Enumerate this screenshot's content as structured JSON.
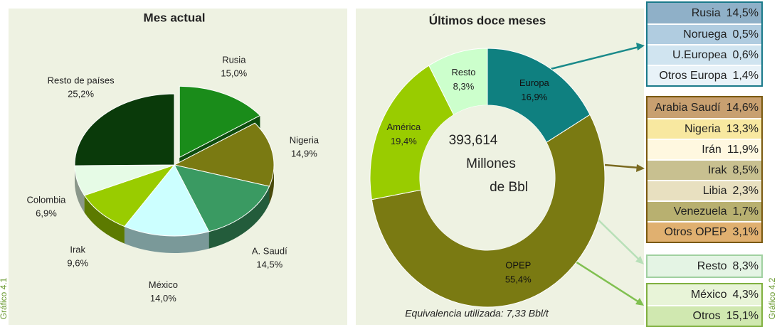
{
  "side_labels": [
    "Gráfico 4.1",
    "Gráfico 4.2"
  ],
  "chart_data": [
    {
      "type": "pie",
      "title": "Mes actual",
      "categories": [
        "Rusia",
        "Nigeria",
        "A. Saudí",
        "México",
        "Irak",
        "Colombia",
        "Resto de países"
      ],
      "values": [
        15.0,
        14.9,
        14.5,
        14.0,
        9.6,
        6.9,
        25.2
      ],
      "value_labels": [
        "15,0%",
        "14,9%",
        "14,5%",
        "14,0%",
        "9,6%",
        "6,9%",
        "25,2%"
      ],
      "colors": [
        "#1a8c1a",
        "#7a7a12",
        "#3a9a62",
        "#ccffff",
        "#99cc00",
        "#e6fbe6",
        "#0a3a0a"
      ],
      "exploded": 0
    },
    {
      "type": "donut",
      "title": "Últimos doce meses",
      "categories": [
        "Europa",
        "OPEP",
        "América",
        "Resto"
      ],
      "values": [
        16.9,
        55.4,
        19.4,
        8.3
      ],
      "value_labels": [
        "16,9%",
        "55,4%",
        "19,4%",
        "8,3%"
      ],
      "colors": [
        "#0f8080",
        "#7a7a12",
        "#99cc00",
        "#ccffcc"
      ],
      "center_text": [
        "393,614",
        "Millones",
        "de Bbl"
      ],
      "note": "Equivalencia utilizada: 7,33 Bbl/t"
    }
  ],
  "breakdown": [
    {
      "border": "#1a7a8a",
      "items": [
        {
          "name": "Rusia",
          "label": "14,5%",
          "color": "#8fb0c8"
        },
        {
          "name": "Noruega",
          "label": "0,5%",
          "color": "#b0cce0"
        },
        {
          "name": "U.Europea",
          "label": "0,6%",
          "color": "#d0e4f0"
        },
        {
          "name": "Otros Europa",
          "label": "1,4%",
          "color": "#e8f2f8"
        }
      ]
    },
    {
      "border": "#7a5a10",
      "items": [
        {
          "name": "Arabia Saudí",
          "label": "14,6%",
          "color": "#c8a070"
        },
        {
          "name": "Nigeria",
          "label": "13,3%",
          "color": "#f8e8a0"
        },
        {
          "name": "Irán",
          "label": "11,9%",
          "color": "#fff8e0"
        },
        {
          "name": "Irak",
          "label": "8,5%",
          "color": "#c8c090"
        },
        {
          "name": "Libia",
          "label": "2,3%",
          "color": "#e8e0c0"
        },
        {
          "name": "Venezuela",
          "label": "1,7%",
          "color": "#b8b070"
        },
        {
          "name": "Otros OPEP",
          "label": "3,1%",
          "color": "#e0b070"
        }
      ]
    },
    {
      "border": "#a0d0a0",
      "items": [
        {
          "name": "Resto",
          "label": "8,3%",
          "color": "#e4f4e4"
        }
      ]
    },
    {
      "border": "#80b040",
      "items": [
        {
          "name": "México",
          "label": "4,3%",
          "color": "#e8f4d8"
        },
        {
          "name": "Otros",
          "label": "15,1%",
          "color": "#d0e8b0"
        }
      ]
    }
  ]
}
